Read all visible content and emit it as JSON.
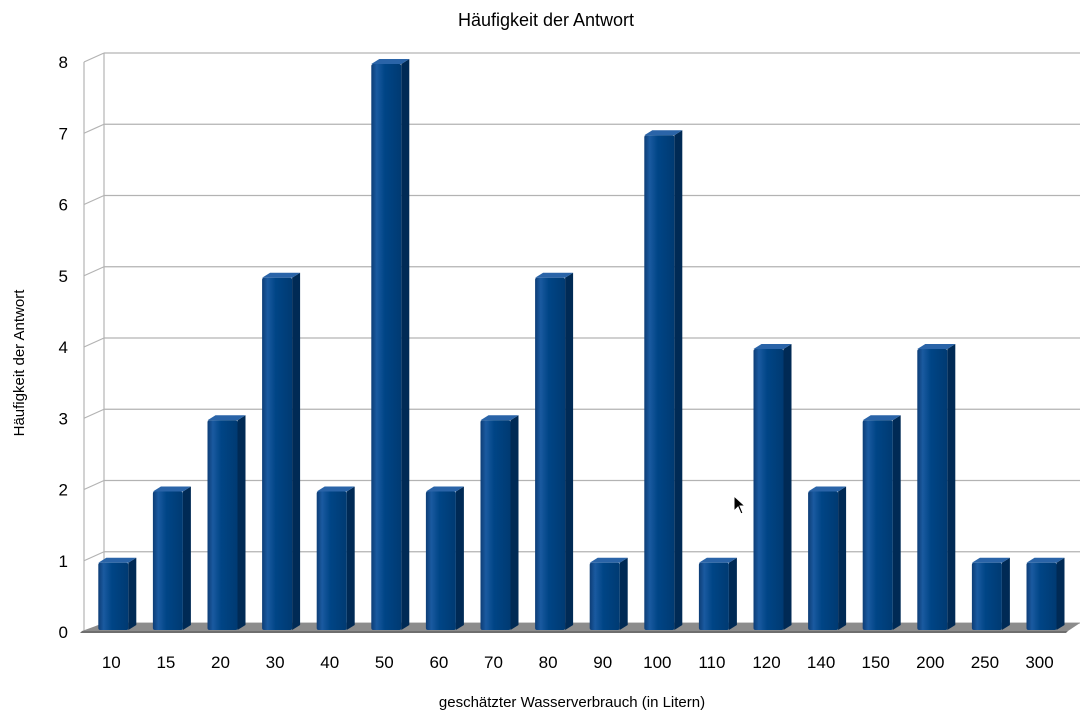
{
  "chart_data": {
    "type": "bar",
    "title": "Häufigkeit der Antwort",
    "xlabel": "geschätzter Wasserverbrauch (in Litern)",
    "ylabel": "Häufigkeit der Antwort",
    "categories": [
      "10",
      "15",
      "20",
      "30",
      "40",
      "50",
      "60",
      "70",
      "80",
      "90",
      "100",
      "110",
      "120",
      "140",
      "150",
      "200",
      "250",
      "300"
    ],
    "values": [
      1,
      2,
      3,
      5,
      2,
      8,
      2,
      3,
      5,
      1,
      7,
      1,
      4,
      2,
      3,
      4,
      1,
      1
    ],
    "ylim": [
      0,
      8
    ],
    "yticks": [
      "0",
      "1",
      "2",
      "3",
      "4",
      "5",
      "6",
      "7",
      "8"
    ],
    "grid": true,
    "style": "3d",
    "bar_color": "#004586",
    "bar_side_color": "#002a55",
    "floor_color": "#8c8c8c",
    "grid_color": "#b3b3b3"
  },
  "cursor": {
    "icon": "mouse-pointer-icon"
  }
}
